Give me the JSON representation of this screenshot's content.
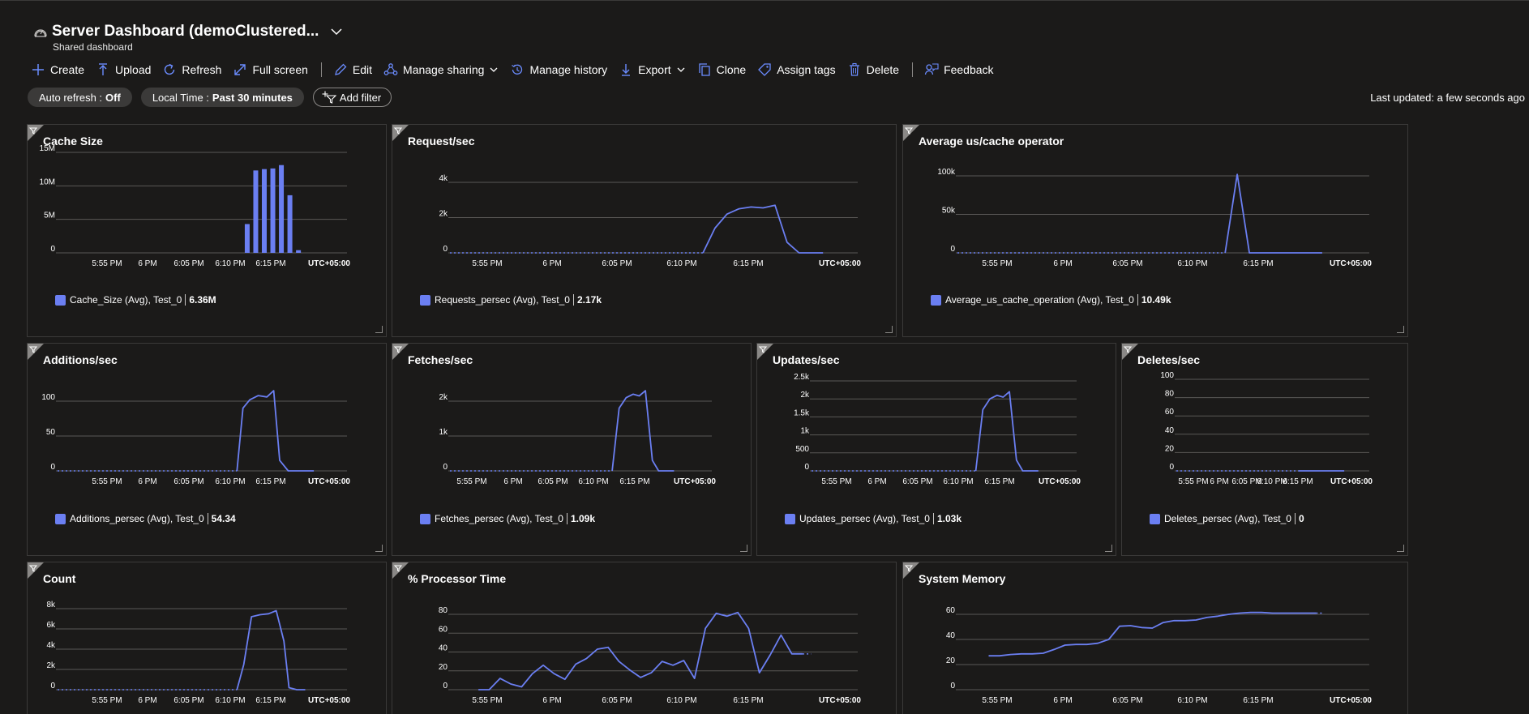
{
  "header": {
    "title": "Server Dashboard (demoClustered...",
    "subtitle": "Shared dashboard"
  },
  "toolbar": {
    "create": "Create",
    "upload": "Upload",
    "refresh": "Refresh",
    "fullscreen": "Full screen",
    "edit": "Edit",
    "manage_sharing": "Manage sharing",
    "manage_history": "Manage history",
    "export": "Export",
    "clone": "Clone",
    "assign_tags": "Assign tags",
    "delete": "Delete",
    "feedback": "Feedback"
  },
  "filters": {
    "auto_refresh_label": "Auto refresh :",
    "auto_refresh_value": "Off",
    "time_label": "Local Time :",
    "time_value": "Past 30 minutes",
    "add_filter": "Add filter"
  },
  "last_updated": "Last updated: a few seconds ago",
  "colors": {
    "series": "#6b7ff2",
    "background": "#1b1a19",
    "gridline": "#5a5856",
    "tile_border": "#3b3a39"
  },
  "chart_data": [
    {
      "id": "cache-size",
      "type": "bar",
      "title": "Cache Size",
      "x_ticks": [
        "5:55 PM",
        "6 PM",
        "6:05 PM",
        "6:10 PM",
        "6:15 PM"
      ],
      "timezone": "UTC+05:00",
      "y_ticks": [
        "15M",
        "10M",
        "5M",
        "0"
      ],
      "ylim": [
        0,
        15000000
      ],
      "x_minutes": [
        20.7,
        21.7,
        22.7,
        23.7,
        24.7,
        25.7,
        26.7
      ],
      "values": [
        4300000,
        12300000,
        12500000,
        12600000,
        13100000,
        8600000,
        400000
      ],
      "legend": {
        "name": "Cache_Size (Avg), Test_0",
        "value": "6.36M"
      }
    },
    {
      "id": "requests-sec",
      "type": "line",
      "title": "Request/sec",
      "x_ticks": [
        "5:55 PM",
        "6 PM",
        "6:05 PM",
        "6:10 PM",
        "6:15 PM"
      ],
      "timezone": "UTC+05:00",
      "y_ticks": [
        "4k",
        "2k",
        "0"
      ],
      "ylim": [
        0,
        4000
      ],
      "x_minutes": [
        19.5,
        20.5,
        21.5,
        22.5,
        23.5,
        24.5,
        25.5,
        26.5,
        27.5,
        28.5,
        29.5
      ],
      "values": [
        0,
        1400,
        2200,
        2500,
        2600,
        2550,
        2700,
        600,
        0,
        0,
        0
      ],
      "dotted_before": 19.5,
      "legend": {
        "name": "Requests_persec (Avg), Test_0",
        "value": "2.17k"
      }
    },
    {
      "id": "avg-us-cache",
      "type": "line",
      "title": "Average us/cache operator",
      "x_ticks": [
        "5:55 PM",
        "6 PM",
        "6:05 PM",
        "6:10 PM",
        "6:15 PM"
      ],
      "timezone": "UTC+05:00",
      "y_ticks": [
        "100k",
        "50k",
        "0"
      ],
      "ylim": [
        0,
        100000
      ],
      "x_minutes": [
        20.5,
        21.5,
        22.5,
        23.5,
        24.5,
        25.5,
        26.5,
        27.5,
        28.5
      ],
      "values": [
        0,
        102000,
        0,
        0,
        0,
        0,
        0,
        0,
        0
      ],
      "dotted_before": 20.5,
      "legend": {
        "name": "Average_us_cache_operation (Avg), Test_0",
        "value": "10.49k"
      }
    },
    {
      "id": "additions-sec",
      "type": "line",
      "title": "Additions/sec",
      "x_ticks": [
        "5:55 PM",
        "6 PM",
        "6:05 PM",
        "6:10 PM",
        "6:15 PM"
      ],
      "timezone": "UTC+05:00",
      "y_ticks": [
        "100",
        "50",
        "0"
      ],
      "ylim": [
        0,
        100
      ],
      "x_minutes": [
        19.5,
        20.2,
        21.0,
        22.0,
        23.0,
        23.8,
        24.5,
        25.5,
        26.5,
        27.5,
        28.5
      ],
      "values": [
        0,
        90,
        102,
        108,
        106,
        115,
        15,
        0,
        0,
        0,
        0
      ],
      "dotted_before": 19.5,
      "legend": {
        "name": "Additions_persec (Avg), Test_0",
        "value": "54.34"
      }
    },
    {
      "id": "fetches-sec",
      "type": "line",
      "title": "Fetches/sec",
      "x_ticks": [
        "5:55 PM",
        "6 PM",
        "6:05 PM",
        "6:10 PM",
        "6:15 PM"
      ],
      "timezone": "UTC+05:00",
      "y_ticks": [
        "2k",
        "1k",
        "0"
      ],
      "ylim": [
        0,
        2000
      ],
      "x_minutes": [
        19.5,
        20.4,
        21.3,
        22.2,
        23.0,
        23.8,
        24.7,
        25.5,
        26.5,
        27.5
      ],
      "values": [
        0,
        1800,
        2100,
        2200,
        2150,
        2300,
        300,
        0,
        0,
        0
      ],
      "dotted_before": 19.5,
      "legend": {
        "name": "Fetches_persec (Avg), Test_0",
        "value": "1.09k"
      }
    },
    {
      "id": "updates-sec",
      "type": "line",
      "title": "Updates/sec",
      "x_ticks": [
        "5:55 PM",
        "6 PM",
        "6:05 PM",
        "6:10 PM",
        "6:15 PM"
      ],
      "timezone": "UTC+05:00",
      "y_ticks": [
        "2.5k",
        "2k",
        "1.5k",
        "1k",
        "500",
        "0"
      ],
      "ylim": [
        0,
        2500
      ],
      "x_minutes": [
        19.5,
        20.4,
        21.3,
        22.2,
        23.0,
        23.8,
        24.7,
        25.5,
        26.5,
        27.5
      ],
      "values": [
        0,
        1700,
        2000,
        2100,
        2050,
        2200,
        300,
        0,
        0,
        0
      ],
      "dotted_before": 19.5,
      "legend": {
        "name": "Updates_persec (Avg), Test_0",
        "value": "1.03k"
      }
    },
    {
      "id": "deletes-sec",
      "type": "line",
      "title": "Deletes/sec",
      "x_ticks": [
        "5:55 PM",
        "6 PM",
        "6:05 PM",
        "6:10 PM",
        "6:15 PM"
      ],
      "timezone": "UTC+05:00",
      "y_ticks": [
        "100",
        "80",
        "60",
        "40",
        "20",
        "0"
      ],
      "ylim": [
        0,
        100
      ],
      "x_minutes": [
        20,
        21,
        22,
        23,
        24,
        25,
        26,
        27,
        28
      ],
      "values": [
        0,
        0,
        0,
        0,
        0,
        0,
        0,
        0,
        0
      ],
      "dotted_before": 20,
      "legend": {
        "name": "Deletes_persec (Avg), Test_0",
        "value": "0"
      }
    },
    {
      "id": "count",
      "type": "line",
      "title": "Count",
      "x_ticks": [
        "5:55 PM",
        "6 PM",
        "6:05 PM",
        "6:10 PM",
        "6:15 PM"
      ],
      "timezone": "UTC+05:00",
      "y_ticks": [
        "8k",
        "6k",
        "4k",
        "2k",
        "0"
      ],
      "ylim": [
        0,
        8000
      ],
      "x_minutes": [
        19.5,
        20.3,
        21.2,
        22.2,
        23.2,
        24.1,
        25.0,
        25.6,
        26.5,
        27.5
      ],
      "values": [
        0,
        2500,
        7200,
        7400,
        7500,
        7800,
        4800,
        200,
        0,
        0
      ],
      "dotted_before": 19.5,
      "legend": null
    },
    {
      "id": "processor-time",
      "type": "line",
      "title": "% Processor Time",
      "x_ticks": [
        "5:55 PM",
        "6 PM",
        "6:05 PM",
        "6:10 PM",
        "6:15 PM"
      ],
      "timezone": "UTC+05:00",
      "y_ticks": [
        "80",
        "60",
        "40",
        "20",
        "0"
      ],
      "ylim": [
        0,
        80
      ],
      "x_minutes": [
        0.8,
        1.7,
        2.6,
        3.5,
        4.4,
        5.3,
        6.2,
        7.1,
        8.0,
        8.9,
        9.8,
        10.7,
        11.6,
        12.5,
        13.4,
        14.3,
        15.2,
        16.1,
        17.0,
        17.9,
        18.8,
        19.7,
        20.6,
        21.5,
        22.4,
        23.3,
        24.2,
        25.1,
        26.0,
        26.9,
        27.8,
        28.5
      ],
      "values": [
        0,
        0,
        12,
        6,
        3,
        17,
        26,
        17,
        11,
        27,
        33,
        43,
        45,
        30,
        21,
        13,
        18,
        30,
        26,
        31,
        12,
        65,
        81,
        78,
        82,
        65,
        18,
        37,
        58,
        38,
        38,
        38
      ],
      "dotted_after": 27.8,
      "legend": null
    },
    {
      "id": "system-memory",
      "type": "line",
      "title": "System Memory",
      "x_ticks": [
        "5:55 PM",
        "6 PM",
        "6:05 PM",
        "6:10 PM",
        "6:15 PM"
      ],
      "timezone": "UTC+05:00",
      "y_ticks": [
        "60",
        "40",
        "20",
        "0"
      ],
      "ylim": [
        0,
        60
      ],
      "x_minutes": [
        1.0,
        1.9,
        2.8,
        3.7,
        4.6,
        5.5,
        6.4,
        7.3,
        8.2,
        9.1,
        10.0,
        10.9,
        11.8,
        12.7,
        13.6,
        14.5,
        15.4,
        16.3,
        17.2,
        18.1,
        19.0,
        19.9,
        20.8,
        21.7,
        22.6,
        23.5,
        24.4,
        25.3,
        26.2,
        27.1,
        28.0,
        28.5
      ],
      "values": [
        27,
        27,
        28,
        28.5,
        28.5,
        29,
        32,
        35.5,
        36,
        36,
        37,
        40,
        50.5,
        51,
        49.5,
        49,
        53.5,
        55,
        55,
        55.5,
        57.5,
        58.5,
        60,
        61,
        61.5,
        61.5,
        61,
        61,
        61,
        61,
        61,
        61
      ],
      "dotted_after": 28.0,
      "legend": null
    }
  ]
}
